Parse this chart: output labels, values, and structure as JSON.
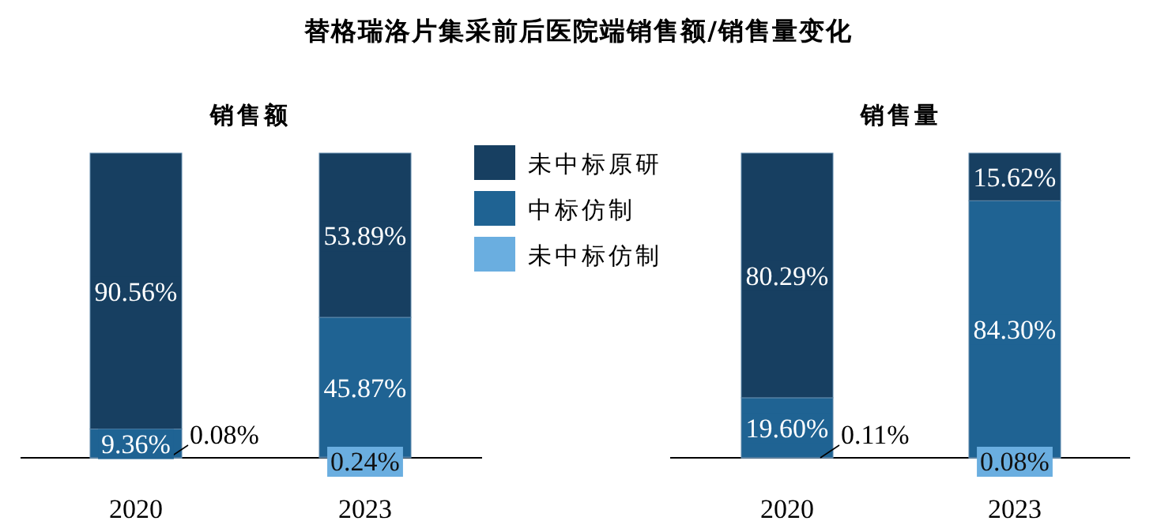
{
  "chart_data": [
    {
      "type": "bar",
      "stacked": true,
      "title": "替格瑞洛片集采前后医院端销售额/销售量变化",
      "subtitle": "销售额",
      "categories": [
        "2020",
        "2023"
      ],
      "legend": "right",
      "series": [
        {
          "name": "未中标仿制",
          "color": "#6aaee0",
          "values": [
            0.08,
            0.24
          ],
          "value_labels": [
            "0.08%",
            "0.24%"
          ]
        },
        {
          "name": "中标仿制",
          "color": "#1f6393",
          "values": [
            9.36,
            45.87
          ],
          "value_labels": [
            "9.36%",
            "45.87%"
          ]
        },
        {
          "name": "未中标原研",
          "color": "#173f61",
          "values": [
            90.56,
            53.89
          ],
          "value_labels": [
            "90.56%",
            "53.89%"
          ]
        }
      ]
    },
    {
      "type": "bar",
      "stacked": true,
      "subtitle": "销售量",
      "categories": [
        "2020",
        "2023"
      ],
      "series": [
        {
          "color": "#6aaee0",
          "values": [
            0.11,
            0.08
          ],
          "value_labels": [
            "0.11%",
            "0.08%"
          ]
        },
        {
          "color": "#1f6393",
          "values": [
            19.6,
            84.3
          ],
          "value_labels": [
            "19.60%",
            "84.30%"
          ]
        },
        {
          "color": "#173f61",
          "values": [
            80.29,
            15.62
          ],
          "value_labels": [
            "80.29%",
            "15.62%"
          ]
        }
      ]
    }
  ]
}
